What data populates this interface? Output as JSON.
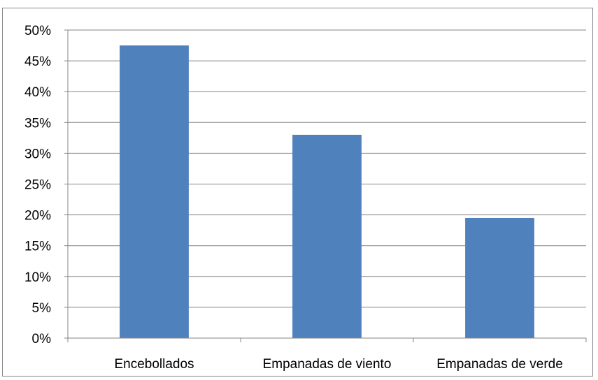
{
  "chart_data": {
    "type": "bar",
    "categories": [
      "Encebollados",
      "Empanadas de viento",
      "Empanadas de verde"
    ],
    "values": [
      47.5,
      33,
      19.5
    ],
    "yticks": [
      "0%",
      "5%",
      "10%",
      "15%",
      "20%",
      "25%",
      "30%",
      "35%",
      "40%",
      "45%",
      "50%"
    ],
    "ylim": [
      0,
      50
    ],
    "grid": true,
    "bar_color": "#4F81BD",
    "grid_color": "#868686",
    "title": "",
    "xlabel": "",
    "ylabel": ""
  }
}
